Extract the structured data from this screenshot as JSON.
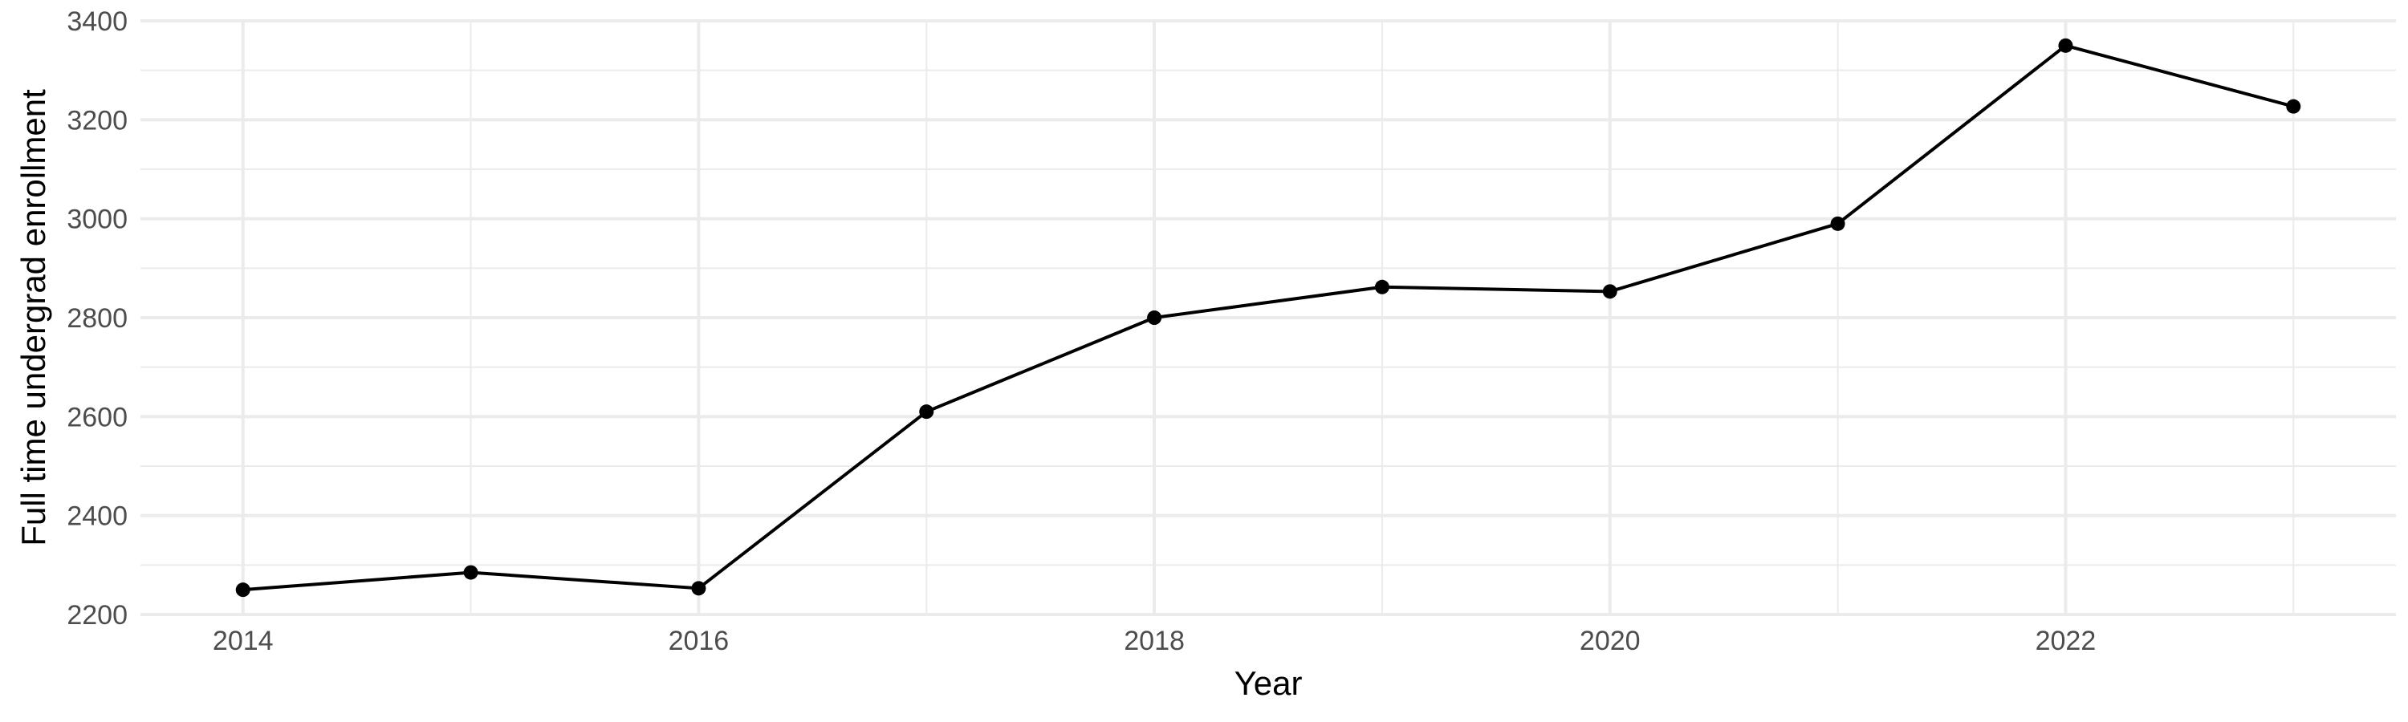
{
  "chart_data": {
    "type": "line",
    "title": "",
    "xlabel": "Year",
    "ylabel": "Full time undergrad enrollment",
    "x": [
      2014,
      2015,
      2016,
      2017,
      2018,
      2019,
      2020,
      2021,
      2022,
      2023
    ],
    "series": [
      {
        "values": [
          2250,
          2285,
          2253,
          2610,
          2800,
          2862,
          2853,
          2990,
          3350,
          3227
        ]
      }
    ],
    "xlim": [
      2013.55,
      2023.45
    ],
    "ylim": [
      2200,
      3400
    ],
    "x_ticks": [
      2014,
      2016,
      2018,
      2020,
      2022
    ],
    "y_ticks": [
      2200,
      2400,
      2600,
      2800,
      3000,
      3200,
      3400
    ],
    "x_tick_labels": [
      "2014",
      "2016",
      "2018",
      "2020",
      "2022"
    ],
    "y_tick_labels": [
      "2200",
      "2400",
      "2600",
      "2800",
      "3000",
      "3200",
      "3400"
    ],
    "grid": true,
    "legend": "none",
    "colors": {
      "line": "#000000",
      "points": "#000000",
      "grid": "#ebebeb",
      "tick_text": "#4d4d4d",
      "background": "#ffffff"
    }
  }
}
